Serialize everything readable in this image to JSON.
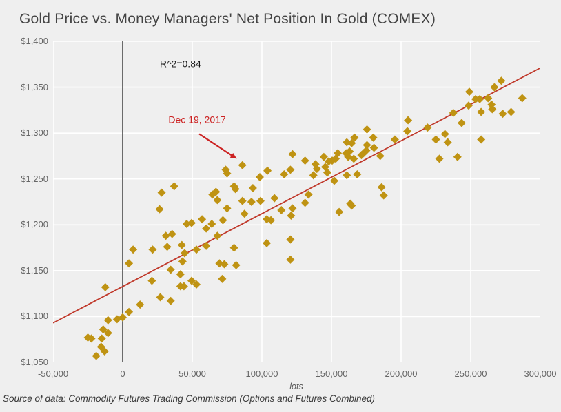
{
  "title": "Gold Price vs. Money Managers' Net Position In Gold (COMEX)",
  "source_note": "Source of data: Commodity Futures Trading Commission (Options and Futures Combined)",
  "chart_data": {
    "type": "scatter",
    "title": "Gold Price vs. Money Managers' Net Position In Gold (COMEX)",
    "xlabel": "lots",
    "ylabel": "",
    "xlim": [
      -50000,
      300000
    ],
    "ylim": [
      1050,
      1400
    ],
    "grid": true,
    "legend": "none",
    "marker": "diamond",
    "marker_color": "#bf9313",
    "grid_color": "#ffffff",
    "background_color": "#efefef",
    "x_ticks": [
      {
        "value": -50000,
        "label": "-50,000"
      },
      {
        "value": 0,
        "label": "0"
      },
      {
        "value": 50000,
        "label": "50,000"
      },
      {
        "value": 100000,
        "label": "100,000"
      },
      {
        "value": 150000,
        "label": "150,000"
      },
      {
        "value": 200000,
        "label": "200,000"
      },
      {
        "value": 250000,
        "label": "250,000"
      },
      {
        "value": 300000,
        "label": "300,000"
      }
    ],
    "y_ticks": [
      {
        "value": 1400,
        "label": "$1,400"
      },
      {
        "value": 1350,
        "label": "$1,350"
      },
      {
        "value": 1300,
        "label": "$1,300"
      },
      {
        "value": 1250,
        "label": "$1,250"
      },
      {
        "value": 1200,
        "label": "$1,200"
      },
      {
        "value": 1150,
        "label": "$1,150"
      },
      {
        "value": 1100,
        "label": "$1,100"
      },
      {
        "value": 1050,
        "label": "$1,050"
      }
    ],
    "zero_line": {
      "x": 0,
      "color": "#2f2f2f"
    },
    "trendline": {
      "from": [
        -50000,
        1093
      ],
      "to": [
        300000,
        1371
      ],
      "color": "#c0392b",
      "r_squared": 0.84
    },
    "annotations": [
      {
        "id": "r-squared",
        "text": "R^2=0.84",
        "x": 41500,
        "y": 1372,
        "color": "#1c1c1c",
        "font_size": 14
      },
      {
        "id": "date-callout",
        "text": "Dec 19, 2017",
        "x": 53500,
        "y": 1311,
        "color": "#cc2222",
        "font_size": 14,
        "arrow": {
          "from": [
            55000,
            1299
          ],
          "to": [
            82000,
            1272
          ]
        }
      }
    ],
    "points": [
      [
        -19000,
        1057
      ],
      [
        -13000,
        1062
      ],
      [
        -15500,
        1067
      ],
      [
        -25000,
        1077
      ],
      [
        -22500,
        1076
      ],
      [
        -15000,
        1076
      ],
      [
        -10500,
        1082
      ],
      [
        -14000,
        1086
      ],
      [
        -4000,
        1097
      ],
      [
        0,
        1099
      ],
      [
        -10500,
        1096
      ],
      [
        4500,
        1105
      ],
      [
        -12500,
        1132
      ],
      [
        12500,
        1113
      ],
      [
        21000,
        1139
      ],
      [
        27000,
        1121
      ],
      [
        34500,
        1117
      ],
      [
        4500,
        1158
      ],
      [
        43000,
        1160
      ],
      [
        34500,
        1151
      ],
      [
        41500,
        1146
      ],
      [
        41500,
        1133
      ],
      [
        44000,
        1133
      ],
      [
        49500,
        1139
      ],
      [
        53000,
        1135
      ],
      [
        69500,
        1158
      ],
      [
        73000,
        1157
      ],
      [
        81500,
        1156
      ],
      [
        71500,
        1141
      ],
      [
        120500,
        1162
      ],
      [
        28000,
        1235
      ],
      [
        37000,
        1242
      ],
      [
        26500,
        1217
      ],
      [
        46000,
        1201
      ],
      [
        49500,
        1202
      ],
      [
        57000,
        1206
      ],
      [
        64500,
        1233
      ],
      [
        67000,
        1236
      ],
      [
        64000,
        1201
      ],
      [
        60000,
        1196
      ],
      [
        31000,
        1188
      ],
      [
        35500,
        1190
      ],
      [
        32000,
        1176
      ],
      [
        42500,
        1178
      ],
      [
        7500,
        1173
      ],
      [
        21500,
        1173
      ],
      [
        53000,
        1173
      ],
      [
        44500,
        1169
      ],
      [
        60000,
        1177
      ],
      [
        86000,
        1265
      ],
      [
        74000,
        1260
      ],
      [
        75000,
        1256
      ],
      [
        80000,
        1242
      ],
      [
        81000,
        1239
      ],
      [
        93500,
        1240
      ],
      [
        86000,
        1226
      ],
      [
        92500,
        1225
      ],
      [
        99000,
        1226
      ],
      [
        109000,
        1229
      ],
      [
        104000,
        1259
      ],
      [
        98500,
        1252
      ],
      [
        116000,
        1255
      ],
      [
        120500,
        1260
      ],
      [
        122000,
        1277
      ],
      [
        131000,
        1270
      ],
      [
        138500,
        1266
      ],
      [
        139500,
        1261
      ],
      [
        145500,
        1263
      ],
      [
        148000,
        1269
      ],
      [
        150500,
        1270
      ],
      [
        153000,
        1272
      ],
      [
        154500,
        1278
      ],
      [
        160500,
        1278
      ],
      [
        162000,
        1274
      ],
      [
        147000,
        1257
      ],
      [
        137000,
        1254
      ],
      [
        152000,
        1248
      ],
      [
        131000,
        1224
      ],
      [
        133500,
        1233
      ],
      [
        122000,
        1218
      ],
      [
        114000,
        1216
      ],
      [
        87500,
        1212
      ],
      [
        72000,
        1205
      ],
      [
        75000,
        1218
      ],
      [
        68000,
        1227
      ],
      [
        103500,
        1206
      ],
      [
        106500,
        1205
      ],
      [
        121000,
        1210
      ],
      [
        155500,
        1214
      ],
      [
        163500,
        1223
      ],
      [
        164500,
        1221
      ],
      [
        120500,
        1184
      ],
      [
        103500,
        1180
      ],
      [
        80000,
        1175
      ],
      [
        68000,
        1188
      ],
      [
        175500,
        1304
      ],
      [
        180000,
        1295
      ],
      [
        166500,
        1295
      ],
      [
        161000,
        1290
      ],
      [
        164500,
        1289
      ],
      [
        175500,
        1287
      ],
      [
        175000,
        1281
      ],
      [
        173000,
        1278
      ],
      [
        171500,
        1276
      ],
      [
        163000,
        1280
      ],
      [
        166000,
        1272
      ],
      [
        180500,
        1284
      ],
      [
        185000,
        1275
      ],
      [
        144500,
        1274
      ],
      [
        195500,
        1293
      ],
      [
        168500,
        1255
      ],
      [
        161000,
        1254
      ],
      [
        186000,
        1241
      ],
      [
        187500,
        1232
      ],
      [
        227500,
        1272
      ],
      [
        240500,
        1274
      ],
      [
        205000,
        1314
      ],
      [
        204500,
        1302
      ],
      [
        219000,
        1306
      ],
      [
        225000,
        1293
      ],
      [
        231500,
        1299
      ],
      [
        233500,
        1290
      ],
      [
        237500,
        1322
      ],
      [
        243500,
        1311
      ],
      [
        249000,
        1345
      ],
      [
        248500,
        1330
      ],
      [
        253500,
        1337
      ],
      [
        256500,
        1337
      ],
      [
        257500,
        1323
      ],
      [
        262500,
        1338
      ],
      [
        265000,
        1331
      ],
      [
        265500,
        1326
      ],
      [
        267000,
        1350
      ],
      [
        272000,
        1357
      ],
      [
        273000,
        1321
      ],
      [
        279000,
        1323
      ],
      [
        287000,
        1338
      ],
      [
        257500,
        1293
      ]
    ]
  }
}
